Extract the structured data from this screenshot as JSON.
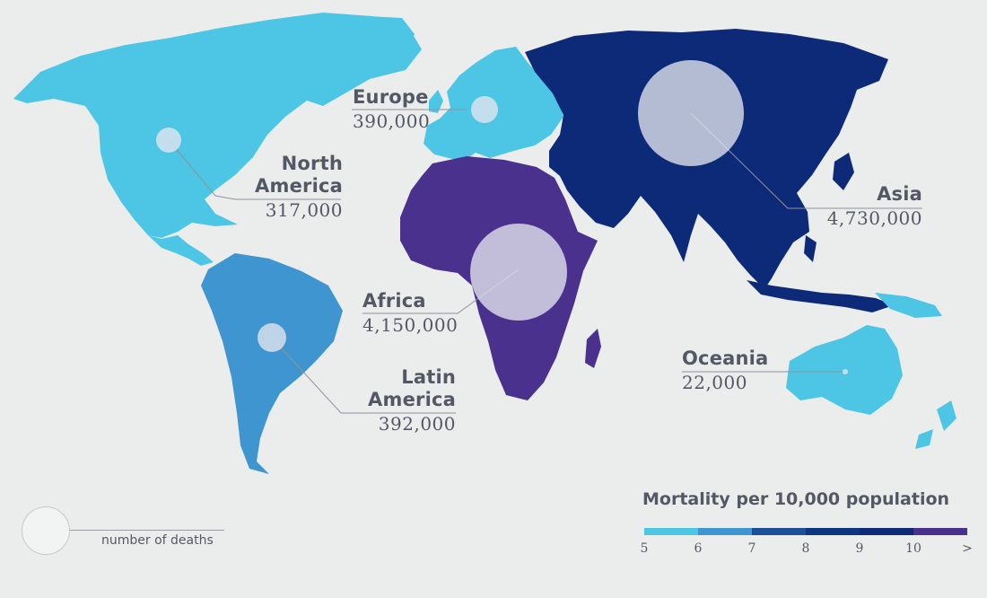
{
  "regions": [
    {
      "key": "north_america",
      "name_lines": [
        "North",
        "America"
      ],
      "deaths": "317,000",
      "fill": "#4dc6e6"
    },
    {
      "key": "europe",
      "name_lines": [
        "Europe"
      ],
      "deaths": "390,000",
      "fill": "#4dc6e6"
    },
    {
      "key": "asia",
      "name_lines": [
        "Asia"
      ],
      "deaths": "4,730,000",
      "fill": "#0d2a78"
    },
    {
      "key": "africa",
      "name_lines": [
        "Africa"
      ],
      "deaths": "4,150,000",
      "fill": "#4b318e"
    },
    {
      "key": "latin_america",
      "name_lines": [
        "Latin",
        "America"
      ],
      "deaths": "392,000",
      "fill": "#3f95cf"
    },
    {
      "key": "oceania",
      "name_lines": [
        "Oceania"
      ],
      "deaths": "22,000",
      "fill": "#4dc6e6"
    }
  ],
  "legend": {
    "title": "Mortality per 10,000 population",
    "ticks": [
      "5",
      "6",
      "7",
      "8",
      "9",
      "10",
      ">"
    ],
    "colors": [
      "#4dc6e6",
      "#3f95cf",
      "#1b4f9a",
      "#0e3580",
      "#0d2a78",
      "#4b318e"
    ]
  },
  "size_key": {
    "label": "number of deaths"
  },
  "colors": {
    "background": "#ebeded",
    "bubble": "#e4e6ee",
    "leader": "#8e939b",
    "text": "#535865"
  }
}
